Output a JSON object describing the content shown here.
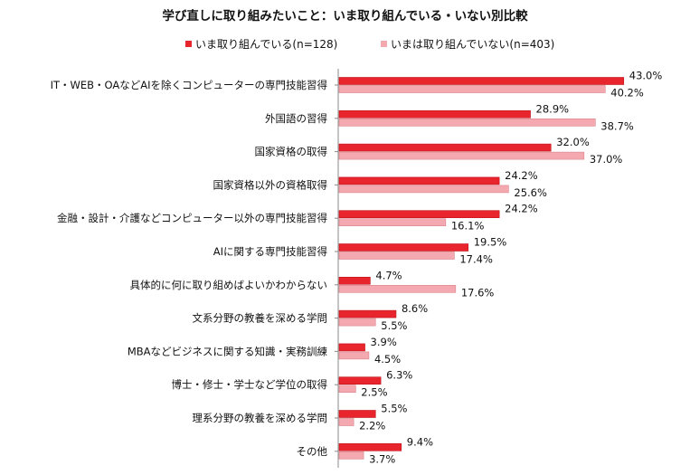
{
  "chart_data": {
    "type": "bar",
    "orientation": "horizontal",
    "title": "学び直しに取り組みたいこと：いま取り組んでいる・いない別比較",
    "categories": [
      "IT・WEB・OAなどAIを除くコンピューターの専門技能習得",
      "外国語の習得",
      "国家資格の取得",
      "国家資格以外の資格取得",
      "金融・設計・介護などコンピューター以外の専門技能習得",
      "AIに関する専門技能習得",
      "具体的に何に取り組めばよいかわからない",
      "文系分野の教養を深める学問",
      "MBAなどビジネスに関する知識・実務訓練",
      "博士・修士・学士など学位の取得",
      "理系分野の教養を深める学問",
      "その他"
    ],
    "series": [
      {
        "name": "いま取り組んでいる(n=128)",
        "color": "#e8242c",
        "values": [
          43.0,
          28.9,
          32.0,
          24.2,
          24.2,
          19.5,
          4.7,
          8.6,
          3.9,
          6.3,
          5.5,
          9.4
        ],
        "labels": [
          "43.0%",
          "28.9%",
          "32.0%",
          "24.2%",
          "24.2%",
          "19.5%",
          "4.7%",
          "8.6%",
          "3.9%",
          "6.3%",
          "5.5%",
          "9.4%"
        ]
      },
      {
        "name": "いまは取り組んでいない(n=403)",
        "color": "#f4a9b0",
        "values": [
          40.2,
          38.7,
          37.0,
          25.6,
          16.1,
          17.4,
          17.6,
          5.5,
          4.5,
          2.5,
          2.2,
          3.7
        ],
        "labels": [
          "40.2%",
          "38.7%",
          "37.0%",
          "25.6%",
          "16.1%",
          "17.4%",
          "17.6%",
          "5.5%",
          "4.5%",
          "2.5%",
          "2.2%",
          "3.7%"
        ]
      }
    ],
    "xlim": [
      0,
      50
    ],
    "grid": false,
    "legend_position": "top"
  }
}
